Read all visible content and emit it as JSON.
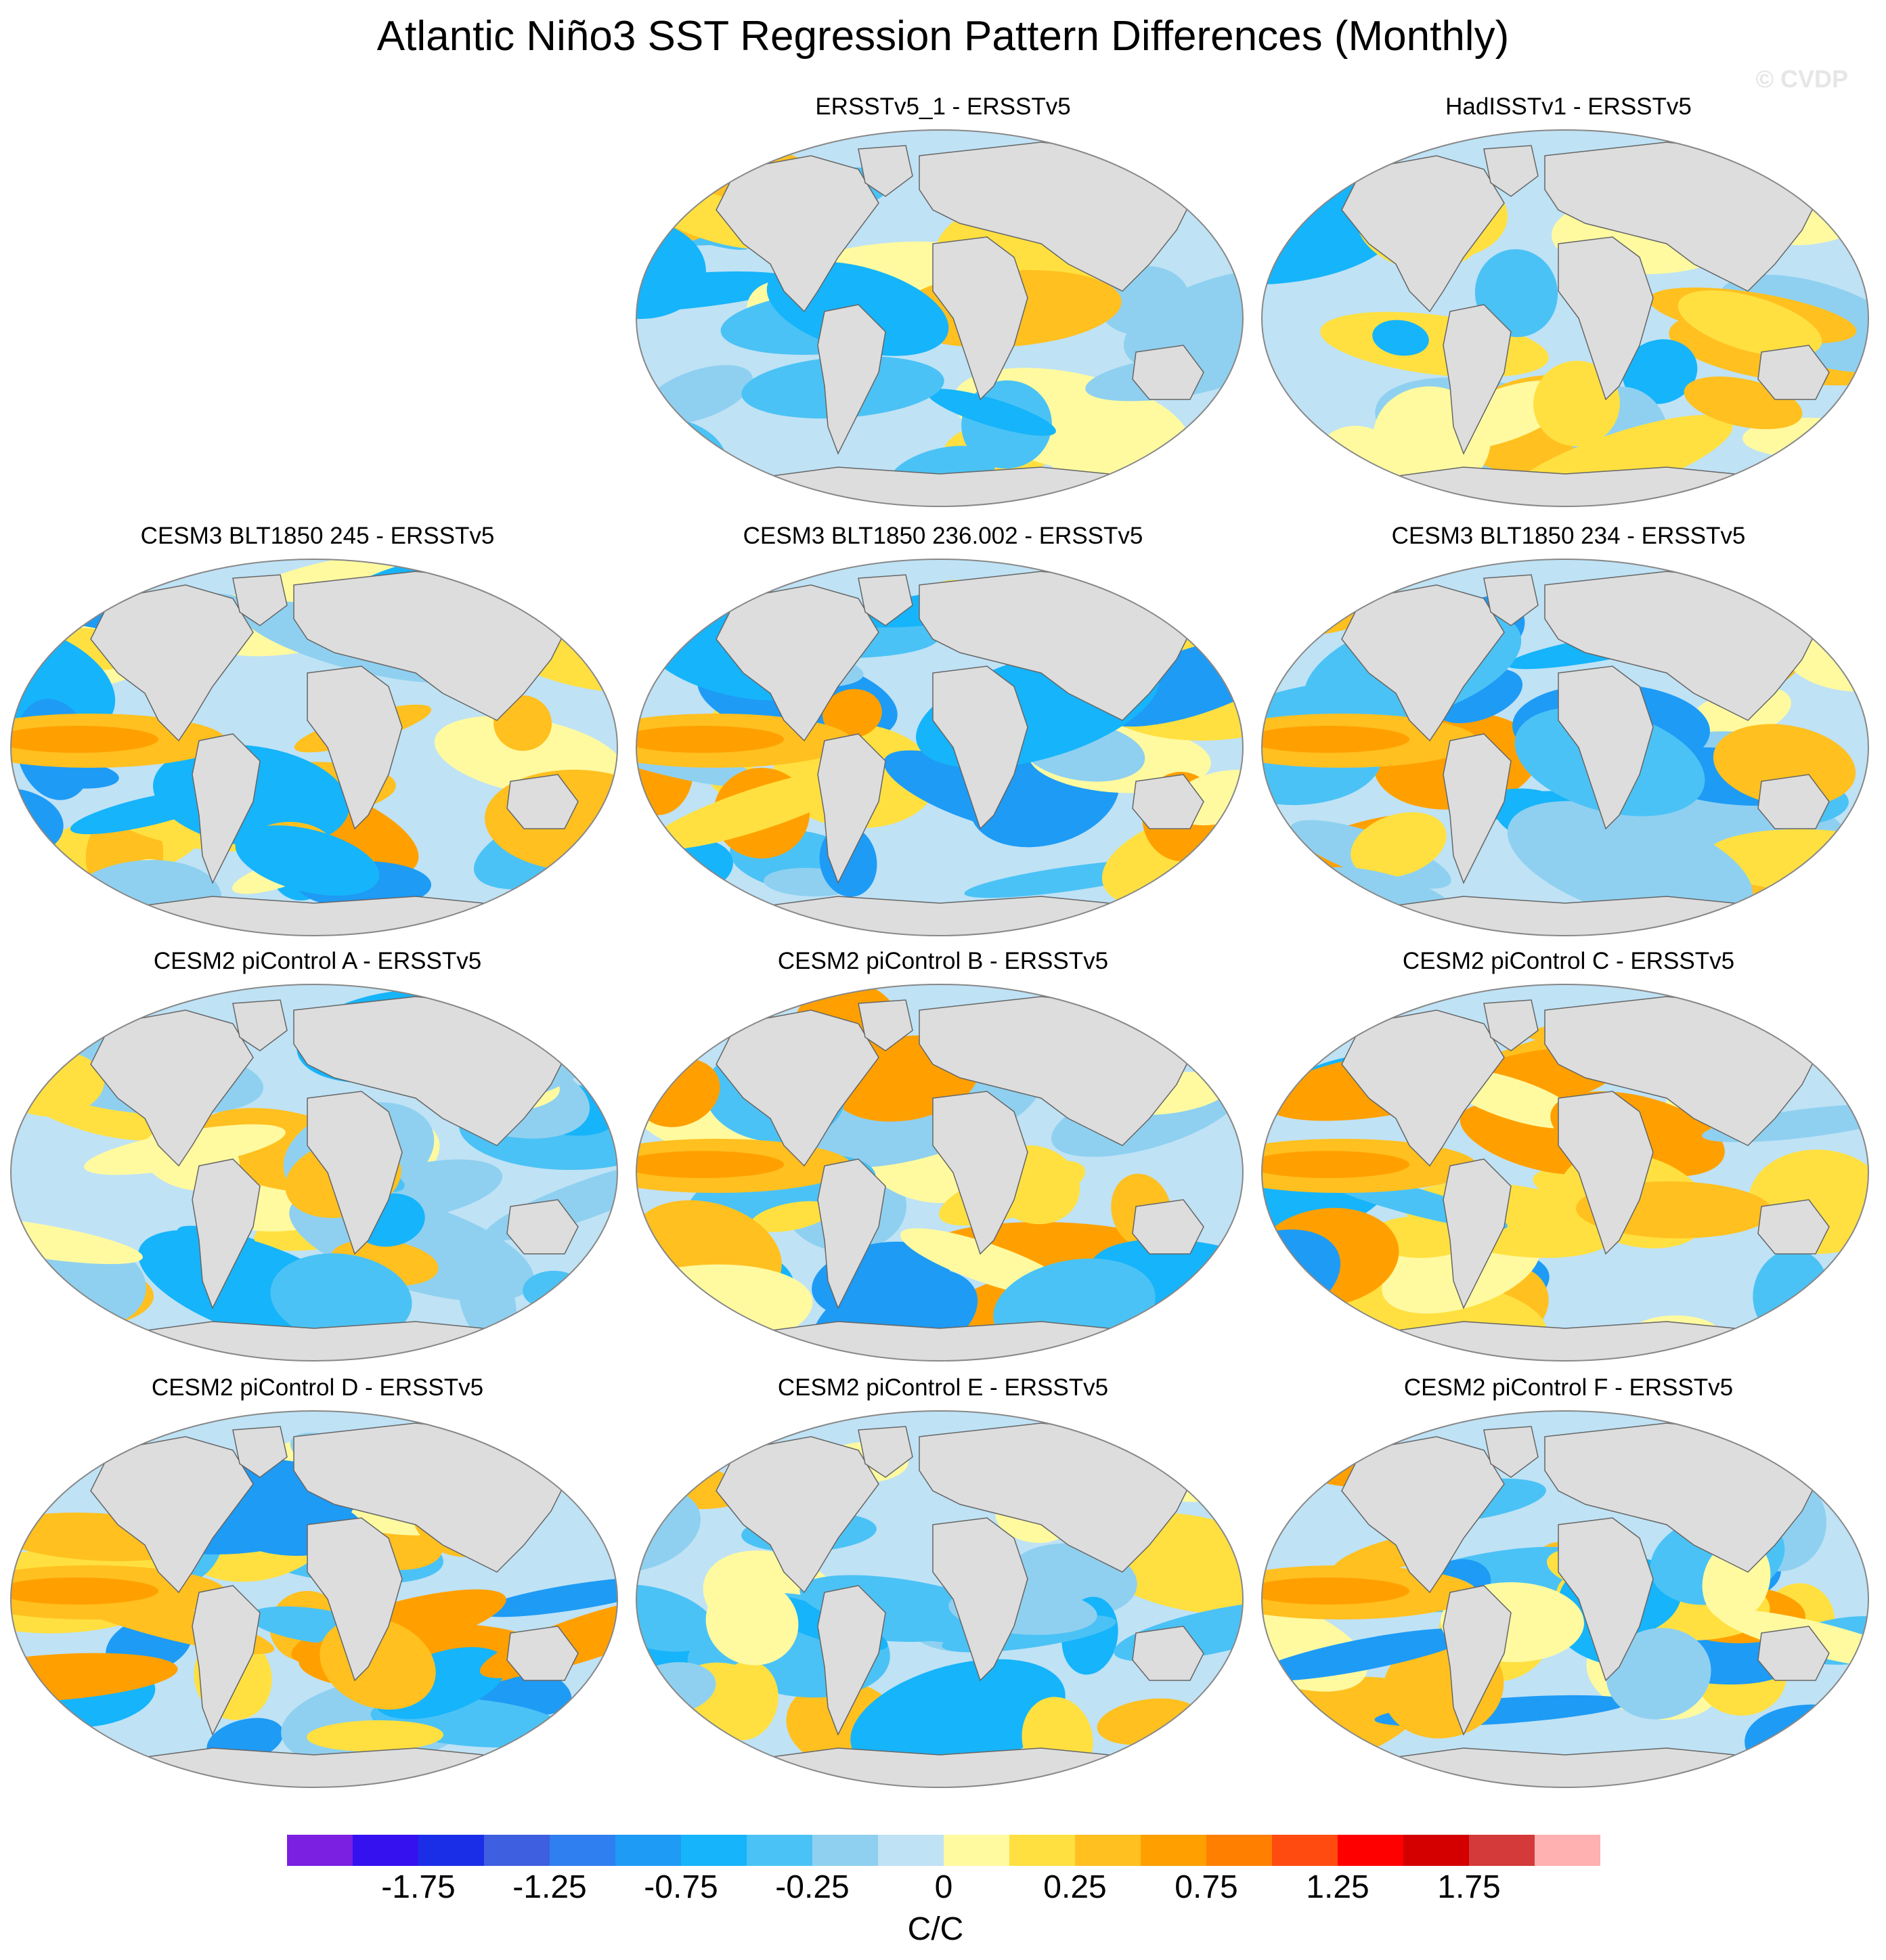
{
  "figure": {
    "title": "Atlantic Niño3 SST Regression Pattern Differences (Monthly)",
    "watermark": "© CVDP"
  },
  "panels": [
    {
      "title": "ERSSTv5_1 - ERSSTv5",
      "row": 0,
      "col": 1,
      "pattern": "weak"
    },
    {
      "title": "HadISSTv1 - ERSSTv5",
      "row": 0,
      "col": 2,
      "pattern": "weak"
    },
    {
      "title": "CESM3 BLT1850 245 - ERSSTv5",
      "row": 1,
      "col": 0,
      "pattern": "strong"
    },
    {
      "title": "CESM3 BLT1850 236.002 - ERSSTv5",
      "row": 1,
      "col": 1,
      "pattern": "strong"
    },
    {
      "title": "CESM3 BLT1850 234 - ERSSTv5",
      "row": 1,
      "col": 2,
      "pattern": "strong"
    },
    {
      "title": "CESM2 piControl A - ERSSTv5",
      "row": 2,
      "col": 0,
      "pattern": "mixed"
    },
    {
      "title": "CESM2 piControl B - ERSSTv5",
      "row": 2,
      "col": 1,
      "pattern": "strong"
    },
    {
      "title": "CESM2 piControl C - ERSSTv5",
      "row": 2,
      "col": 2,
      "pattern": "strong"
    },
    {
      "title": "CESM2 piControl D - ERSSTv5",
      "row": 3,
      "col": 0,
      "pattern": "strong"
    },
    {
      "title": "CESM2 piControl E - ERSSTv5",
      "row": 3,
      "col": 1,
      "pattern": "mixed"
    },
    {
      "title": "CESM2 piControl F - ERSSTv5",
      "row": 3,
      "col": 2,
      "pattern": "strong"
    }
  ],
  "colorbar": {
    "units": "C/C",
    "labels": [
      "-1.75",
      "-1.25",
      "-0.75",
      "-0.25",
      "0",
      "0.25",
      "0.75",
      "1.25",
      "1.75"
    ],
    "colors": [
      "#7b1fe0",
      "#3511f0",
      "#1a2ee8",
      "#3d5fe0",
      "#2f7ff0",
      "#1e9bf5",
      "#16b4fa",
      "#4bc2f5",
      "#8fd0f0",
      "#bfe2f5",
      "#fffaa0",
      "#ffe040",
      "#ffc020",
      "#ffa000",
      "#ff7f00",
      "#ff4a10",
      "#ff0000",
      "#d40000",
      "#d43a3a",
      "#ffb0b0"
    ],
    "land_color": "#dddddd",
    "zero_color": "#bfe2f5"
  }
}
